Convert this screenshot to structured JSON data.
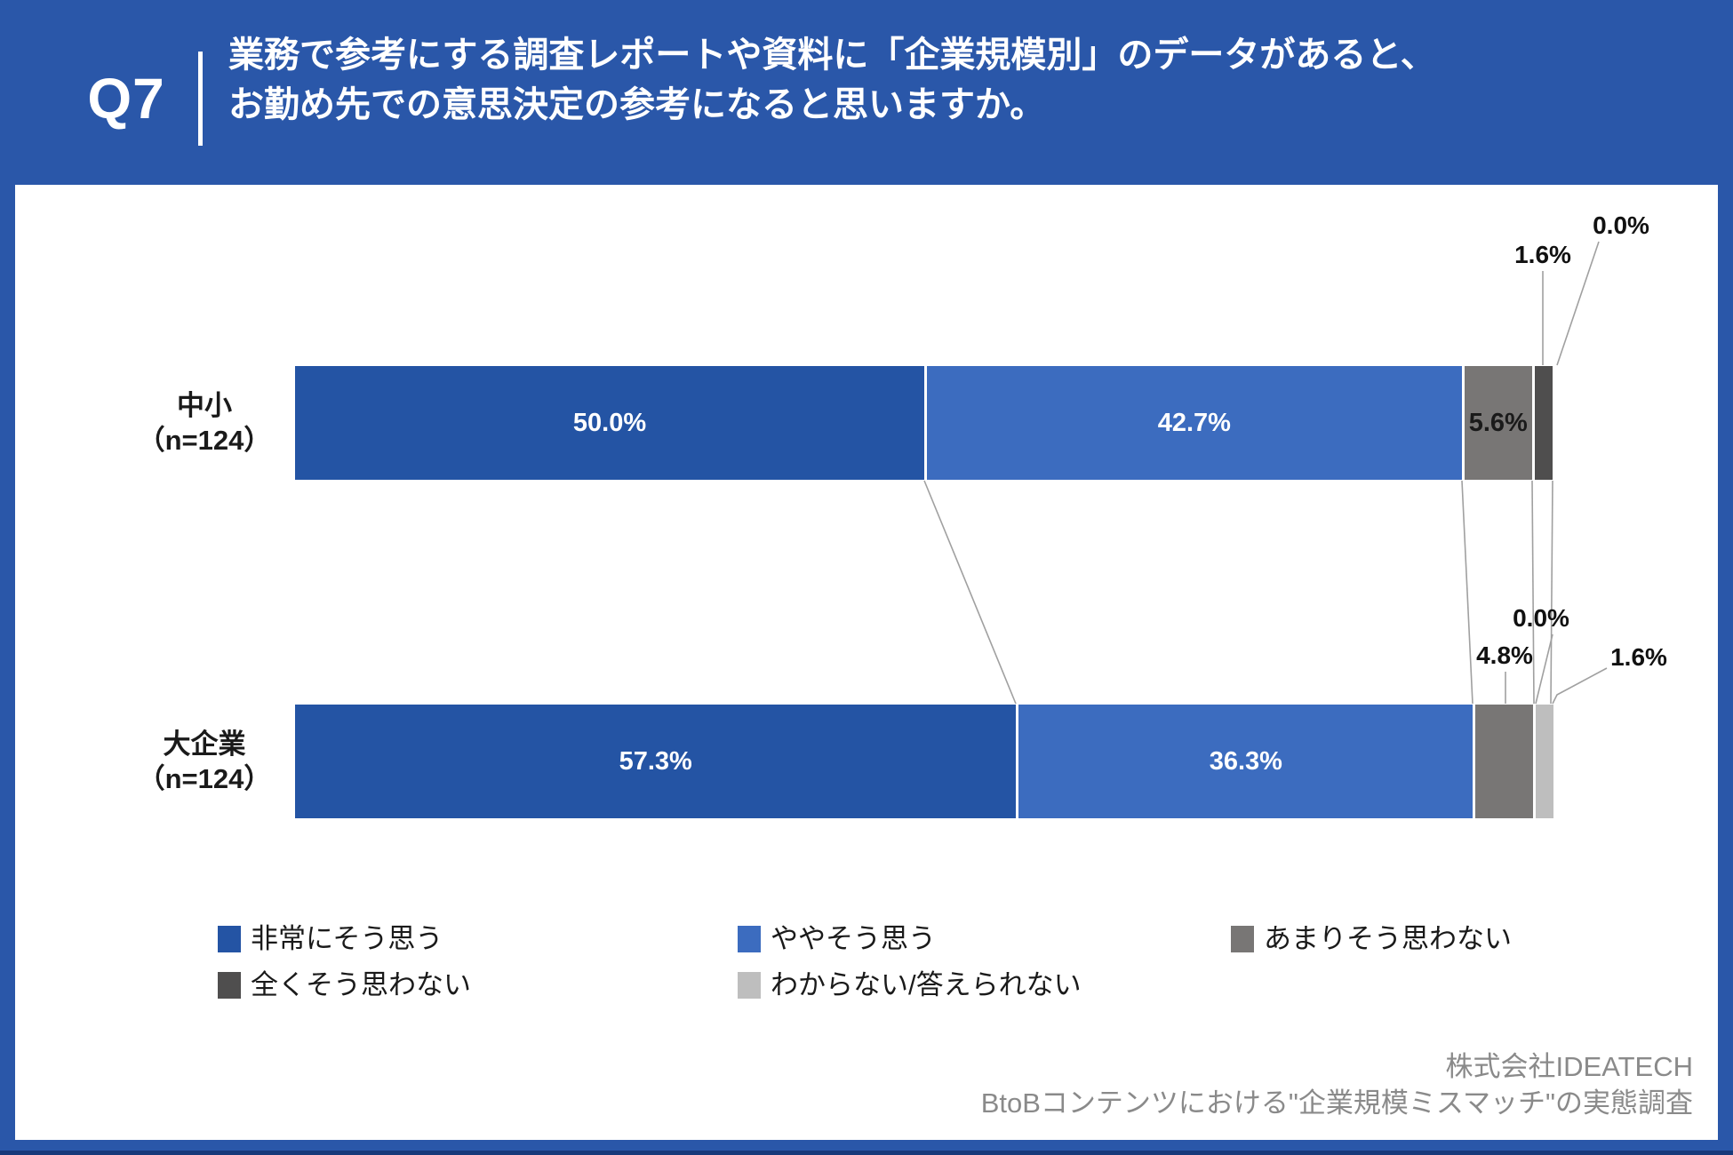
{
  "header": {
    "q_label": "Q7",
    "title_line1": "業務で参考にする調査レポートや資料に「企業規模別」のデータがあると、",
    "title_line2": "お勤め先での意思決定の参考になると思いますか。"
  },
  "chart_data": {
    "type": "bar",
    "stacked": true,
    "orientation": "horizontal",
    "unit": "percent",
    "xlim": [
      0,
      100
    ],
    "categories": [
      {
        "label": "中小",
        "n_label": "（n=124）"
      },
      {
        "label": "大企業",
        "n_label": "（n=124）"
      }
    ],
    "series": [
      {
        "name": "非常にそう思う",
        "color": "#2454a4",
        "label_color": "#ffffff",
        "values": [
          50.0,
          57.3
        ]
      },
      {
        "name": "ややそう思う",
        "color": "#3c6cbf",
        "label_color": "#ffffff",
        "values": [
          42.7,
          36.3
        ]
      },
      {
        "name": "あまりそう思わない",
        "color": "#787675",
        "label_color": "#1a1a1a",
        "values": [
          5.6,
          4.8
        ]
      },
      {
        "name": "全くそう思わない",
        "color": "#4f4e4e",
        "label_color": "#1a1a1a",
        "values": [
          1.6,
          0.0
        ]
      },
      {
        "name": "わからない/答えられない",
        "color": "#bebebe",
        "label_color": "#1a1a1a",
        "values": [
          0.0,
          1.6
        ]
      }
    ],
    "value_labels": [
      [
        "50.0%",
        "42.7%",
        "5.6%",
        "1.6%",
        "0.0%"
      ],
      [
        "57.3%",
        "36.3%",
        "4.8%",
        "0.0%",
        "1.6%"
      ]
    ],
    "legend_position": "bottom"
  },
  "footer": {
    "line1": "株式会社IDEATECH",
    "line2": "BtoBコンテンツにおける\"企業規模ミスマッチ\"の実態調査"
  }
}
